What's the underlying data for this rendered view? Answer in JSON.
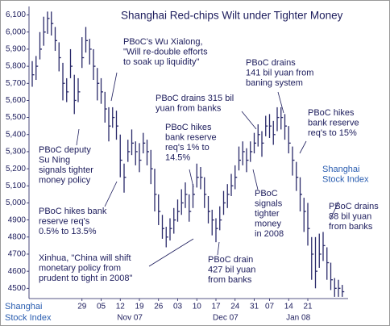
{
  "chart_data": {
    "type": "ohlc",
    "title": "Shanghai Red-chips Wilt under Tighter Money",
    "axis_label": [
      "Shanghai",
      "Stock Index"
    ],
    "categories": [
      null,
      null,
      null,
      null,
      null,
      null,
      null,
      null,
      null,
      null,
      null,
      null,
      null,
      "29",
      null,
      null,
      null,
      null,
      "05",
      null,
      null,
      null,
      null,
      "12",
      null,
      null,
      null,
      null,
      "19",
      null,
      null,
      null,
      null,
      "26",
      null,
      null,
      null,
      null,
      "03",
      null,
      null,
      null,
      null,
      "10",
      null,
      null,
      null,
      null,
      "17",
      null,
      null,
      null,
      null,
      "24",
      null,
      null,
      null,
      null,
      "31",
      null,
      null,
      null,
      "07",
      null,
      null,
      null,
      null,
      "14",
      null,
      null,
      null,
      null,
      "21",
      null,
      null,
      null,
      null,
      null,
      null,
      null,
      null,
      null
    ],
    "month_labels": [
      "Nov 07",
      "Dec 07",
      "Jan 08"
    ],
    "high": [
      5830,
      5860,
      6000,
      6090,
      6120,
      6120,
      6030,
      5940,
      5820,
      5730,
      5900,
      5750,
      5730,
      5970,
      6030,
      5960,
      5900,
      5790,
      5730,
      5650,
      5560,
      5560,
      5540,
      5400,
      5230,
      5370,
      5430,
      5360,
      5350,
      5410,
      5370,
      5310,
      5200,
      5050,
      4930,
      4860,
      4910,
      4970,
      5020,
      5080,
      5120,
      5050,
      5110,
      5230,
      5210,
      5150,
      5040,
      4960,
      4910,
      4980,
      5070,
      5110,
      5170,
      5220,
      5330,
      5360,
      5320,
      5360,
      5410,
      5460,
      5420,
      5510,
      5520,
      5480,
      5560,
      5560,
      5520,
      5450,
      5330,
      5240,
      5150,
      5030,
      5000,
      4800,
      4800,
      4820,
      4830,
      4740,
      4650,
      4560,
      4550,
      4520
    ],
    "low": [
      5680,
      5720,
      5840,
      5920,
      5990,
      5980,
      5890,
      5770,
      5600,
      5590,
      5730,
      5520,
      5590,
      5790,
      5880,
      5810,
      5720,
      5600,
      5580,
      5470,
      5360,
      5440,
      5370,
      5150,
      5060,
      5240,
      5280,
      5220,
      5180,
      5290,
      5220,
      5110,
      4950,
      4870,
      4790,
      4740,
      4780,
      4820,
      4890,
      4930,
      4970,
      4890,
      4970,
      5090,
      5080,
      4970,
      4880,
      4810,
      4770,
      4840,
      4930,
      4970,
      5040,
      5080,
      5190,
      5220,
      5180,
      5240,
      5290,
      5330,
      5270,
      5390,
      5380,
      5340,
      5420,
      5430,
      5370,
      5290,
      5160,
      5070,
      4950,
      4830,
      4750,
      4550,
      4500,
      4620,
      4660,
      4550,
      4490,
      4450,
      4450,
      4450
    ],
    "close": [
      5750,
      5800,
      5900,
      6000,
      6080,
      6050,
      5950,
      5850,
      5700,
      5650,
      5800,
      5600,
      5650,
      5850,
      5950,
      5900,
      5800,
      5700,
      5650,
      5550,
      5450,
      5500,
      5450,
      5250,
      5150,
      5300,
      5350,
      5300,
      5250,
      5350,
      5300,
      5200,
      5050,
      4950,
      4850,
      4800,
      4850,
      4900,
      4950,
      5000,
      5050,
      4950,
      5050,
      5150,
      5150,
      5050,
      4950,
      4900,
      4850,
      4900,
      5000,
      5050,
      5100,
      5150,
      5250,
      5300,
      5250,
      5300,
      5350,
      5400,
      5350,
      5450,
      5450,
      5400,
      5500,
      5500,
      5450,
      5350,
      5250,
      5150,
      5050,
      4950,
      4850,
      4700,
      4600,
      4700,
      4750,
      4650,
      4550,
      4500,
      4500,
      4480
    ],
    "color": "#2a2a6a",
    "ylim": [
      4440,
      6150
    ],
    "yticks": [
      4500,
      4600,
      4700,
      4800,
      4900,
      {
        "value": 5000,
        "label": "5,000"
      },
      {
        "value": 5100,
        "label": "5,100"
      },
      {
        "value": 5200,
        "label": "5,200"
      },
      {
        "value": 5300,
        "label": "5,300"
      },
      {
        "value": 5400,
        "label": "5,400"
      },
      {
        "value": 5500,
        "label": "5,500"
      },
      {
        "value": 5600,
        "label": "5,600"
      },
      {
        "value": 5700,
        "label": "5,700"
      },
      {
        "value": 5800,
        "label": "5,800"
      },
      {
        "value": 5900,
        "label": "5,900"
      },
      {
        "value": 6000,
        "label": "6,000"
      },
      {
        "value": 6100,
        "label": "6,100"
      }
    ],
    "annotations": [
      [
        "PBoC's Wu Xialong,",
        "\"Will re-double efforts",
        "to soak up liquidity\""
      ],
      [
        "PBoC drains",
        "141 bil yuan from",
        "baning system"
      ],
      [
        "PBoC drains 315 bil",
        "yuan from banks"
      ],
      [
        "PBoC hikes",
        "bank reserve",
        "req's to 15%"
      ],
      [
        "PBoC hikes",
        "bank reserve",
        "req's 1% to",
        "14.5%"
      ],
      [
        "PBoC deputy",
        "Su Ning",
        "signals tighter",
        "money policy"
      ],
      [
        "Shanghai",
        "Stock Index"
      ],
      [
        "PBoC",
        "signals",
        "tighter",
        "money",
        "in 2008"
      ],
      [
        "PBoC drains",
        "88 bil yuan",
        "from banks"
      ],
      [
        "PBoC hikes bank",
        "reserve req's",
        "0.5% to 13.5%"
      ],
      [
        "Xinhua, \"China will shift",
        "monetary policy from",
        "prudent to tight in 2008\""
      ],
      [
        "PBoC drain",
        "427 bil yuan",
        "from banks"
      ]
    ]
  }
}
